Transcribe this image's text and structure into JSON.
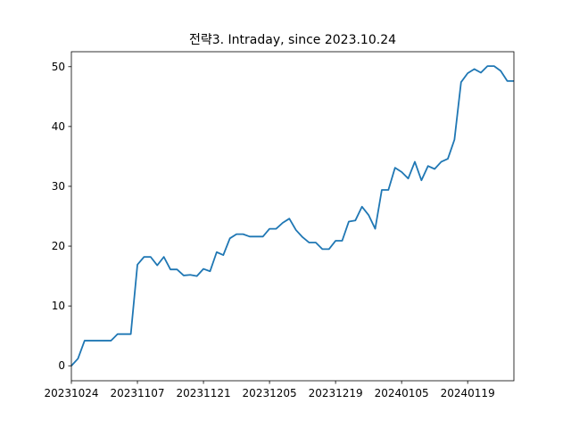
{
  "chart_data": {
    "type": "line",
    "title": "전략3. Intraday, since 2023.10.24",
    "xlabel": "",
    "ylabel": "",
    "grid": false,
    "ylim": [
      -2.5,
      52.5
    ],
    "yticks": [
      0,
      10,
      20,
      30,
      40,
      50
    ],
    "xtick_labels": [
      "20231024",
      "20231107",
      "20231121",
      "20231205",
      "20231219",
      "20240105",
      "20240119"
    ],
    "line_color": "#1f77b4",
    "series": [
      {
        "values": [
          0,
          1.2,
          4.2,
          4.2,
          4.2,
          4.2,
          4.2,
          5.3,
          5.3,
          5.3,
          16.9,
          18.2,
          18.2,
          16.8,
          18.2,
          16.1,
          16.1,
          15.1,
          15.2,
          15.0,
          16.2,
          15.8,
          19.0,
          18.5,
          21.3,
          22.0,
          22.0,
          21.6,
          21.6,
          21.6,
          22.9,
          22.9,
          23.9,
          24.6,
          22.7,
          21.5,
          20.6,
          20.6,
          19.5,
          19.5,
          20.9,
          20.9,
          24.1,
          24.3,
          26.6,
          25.2,
          22.9,
          29.4,
          29.4,
          33.1,
          32.4,
          31.3,
          34.1,
          31.0,
          33.4,
          32.9,
          34.1,
          34.6,
          37.8,
          47.4,
          48.9,
          49.6,
          49.0,
          50.1,
          50.1,
          49.3,
          47.6,
          47.6
        ]
      }
    ]
  }
}
